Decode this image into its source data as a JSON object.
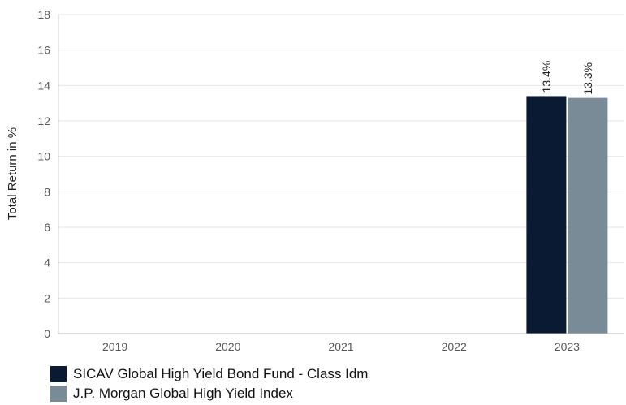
{
  "chart_data": {
    "type": "bar",
    "ylabel": "Total Return in %",
    "ylim": [
      0,
      18
    ],
    "yticks": [
      0,
      2,
      4,
      6,
      8,
      10,
      12,
      14,
      16,
      18
    ],
    "categories": [
      "2019",
      "2020",
      "2021",
      "2022",
      "2023"
    ],
    "grid": true,
    "legend_position": "bottom-left",
    "series": [
      {
        "name": "SICAV Global High Yield Bond Fund - Class Idm",
        "color": "#0b1a33",
        "values": [
          null,
          null,
          null,
          null,
          13.4
        ],
        "labels": [
          "",
          "",
          "",
          "",
          "13.4%"
        ]
      },
      {
        "name": "J.P. Morgan Global High Yield Index",
        "color": "#7a8b98",
        "values": [
          null,
          null,
          null,
          null,
          13.3
        ],
        "labels": [
          "",
          "",
          "",
          "",
          "13.3%"
        ]
      }
    ]
  }
}
